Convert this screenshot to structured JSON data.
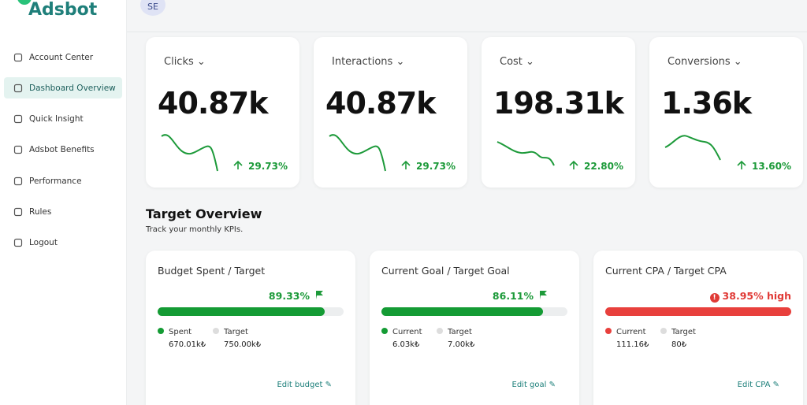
{
  "logo": "Adsbot",
  "avatar": "SE",
  "nav": [
    "Account Center",
    "Dashboard Overview",
    "Quick Insight",
    "Adsbot Benefits",
    "Performance",
    "Rules",
    "Logout"
  ],
  "kpis": [
    {
      "title": "Clicks",
      "value": "40.87k",
      "change": "29.73%"
    },
    {
      "title": "Interactions",
      "value": "40.87k",
      "change": "29.73%"
    },
    {
      "title": "Cost",
      "value": "198.31k",
      "change": "22.80%"
    },
    {
      "title": "Conversions",
      "value": "1.36k",
      "change": "13.60%"
    }
  ],
  "target": {
    "title": "Target Overview",
    "subtitle": "Track your monthly KPIs.",
    "cards": [
      {
        "title": "Budget Spent / Target",
        "percent": "89.33%",
        "legend": [
          {
            "name": "Spent",
            "value": "670.01k₺"
          },
          {
            "name": "Target",
            "value": "750.00k₺"
          }
        ],
        "action": "Edit budget"
      },
      {
        "title": "Current Goal / Target Goal",
        "percent": "86.11%",
        "legend": [
          {
            "name": "Current",
            "value": "6.03k₺"
          },
          {
            "name": "Target",
            "value": "7.00k₺"
          }
        ],
        "action": "Edit goal"
      },
      {
        "title": "Current CPA / Target CPA",
        "percent": "38.95% high",
        "legend": [
          {
            "name": "Current",
            "value": "111.16₺"
          },
          {
            "name": "Target",
            "value": "80₺"
          }
        ],
        "action": "Edit CPA"
      }
    ]
  }
}
